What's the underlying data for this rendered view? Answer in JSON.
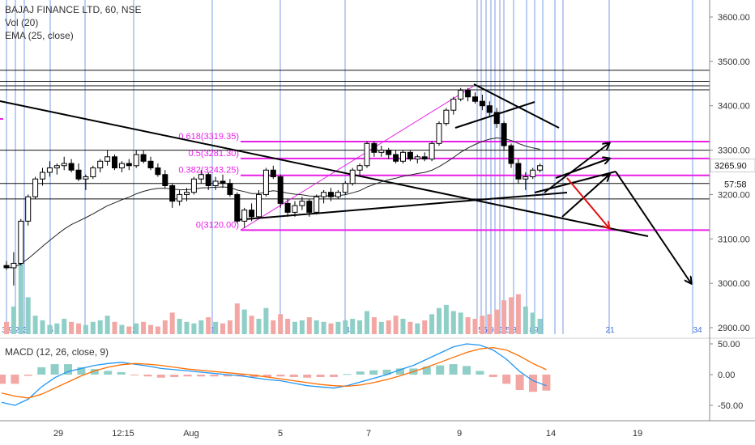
{
  "legend": {
    "title": "BAJAJ FINANCE LTD, 60, NSE",
    "vol": "Vol (20)",
    "ema": "EMA (25, close)",
    "macd": "MACD (12, 26, close, 9)"
  },
  "colors": {
    "up": "#26a69a",
    "down": "#ef5350",
    "volUp": "#8fcfc8",
    "volDown": "#f2a7a5",
    "fib": "#e91ee9",
    "vline": "#3d6fd6",
    "trend": "#000000",
    "ema": "#222222",
    "macdLine": "#2196f3",
    "signalLine": "#ff6d00",
    "arrowRed": "#e01010"
  },
  "price_axis": {
    "ticks": [
      {
        "v": 3600,
        "label": "3600.00"
      },
      {
        "v": 3500,
        "label": "3500.00"
      },
      {
        "v": 3400,
        "label": "3400.00"
      },
      {
        "v": 3300,
        "label": "3300.00"
      },
      {
        "v": 3200,
        "label": "3200.00"
      },
      {
        "v": 3100,
        "label": "3100.00"
      },
      {
        "v": 3000,
        "label": "3000.00"
      },
      {
        "v": 2900,
        "label": "2900.00"
      }
    ],
    "last_price": "3265.90",
    "countdown": "57:58"
  },
  "macd_axis": {
    "ticks": [
      {
        "v": 50,
        "label": "50.00"
      },
      {
        "v": 0,
        "label": "0.00"
      },
      {
        "v": -50,
        "label": "-50.00"
      }
    ]
  },
  "time_axis": [
    "29",
    "12:15",
    "Aug",
    "5",
    "7",
    "9",
    "14",
    "19"
  ],
  "fib_labels": [
    {
      "text": "0.618(3319.35)",
      "price": 3319.35
    },
    {
      "text": "0.5(3281.30)",
      "price": 3281.3
    },
    {
      "text": "0.382(3243.25)",
      "price": 3243.25
    },
    {
      "text": "0(3120.00)",
      "price": 3120.0
    }
  ],
  "cycle_labels": [
    "3",
    "9",
    "2",
    "3",
    "5",
    "8",
    "2",
    "1",
    "3",
    "4",
    "5",
    "5",
    "9",
    "2",
    "3",
    "5",
    "8",
    "89",
    "21",
    "34"
  ],
  "chart_data": {
    "type": "candlestick",
    "symbol": "BAJAJ FINANCE LTD",
    "interval": "60",
    "exchange": "NSE",
    "x_ticks": [
      "29",
      "12:15",
      "Aug",
      "5",
      "7",
      "9",
      "14",
      "19"
    ],
    "y_ticks": [
      3600,
      3500,
      3400,
      3300,
      3200,
      3100,
      3000,
      2900
    ],
    "ylim": [
      2880,
      3640
    ],
    "last_price": 3265.9,
    "fib_levels": [
      3319.35,
      3281.3,
      3243.25,
      3120.0
    ],
    "horizontal_levels": [
      3480,
      3455,
      3445,
      3436,
      3300,
      3225,
      3190
    ],
    "candles": [
      [
        3040,
        3050,
        3030,
        3035
      ],
      [
        3035,
        3070,
        2995,
        3045
      ],
      [
        3045,
        3145,
        3040,
        3140
      ],
      [
        3140,
        3200,
        3130,
        3195
      ],
      [
        3195,
        3240,
        3190,
        3235
      ],
      [
        3235,
        3260,
        3220,
        3250
      ],
      [
        3250,
        3275,
        3240,
        3260
      ],
      [
        3260,
        3270,
        3245,
        3265
      ],
      [
        3265,
        3285,
        3255,
        3270
      ],
      [
        3270,
        3280,
        3250,
        3255
      ],
      [
        3255,
        3270,
        3230,
        3235
      ],
      [
        3235,
        3245,
        3210,
        3240
      ],
      [
        3240,
        3265,
        3235,
        3260
      ],
      [
        3260,
        3280,
        3250,
        3275
      ],
      [
        3275,
        3300,
        3265,
        3285
      ],
      [
        3285,
        3290,
        3255,
        3260
      ],
      [
        3260,
        3275,
        3250,
        3270
      ],
      [
        3270,
        3280,
        3255,
        3265
      ],
      [
        3265,
        3300,
        3260,
        3290
      ],
      [
        3290,
        3300,
        3270,
        3275
      ],
      [
        3275,
        3285,
        3255,
        3260
      ],
      [
        3260,
        3270,
        3240,
        3245
      ],
      [
        3245,
        3255,
        3215,
        3220
      ],
      [
        3220,
        3225,
        3170,
        3185
      ],
      [
        3185,
        3210,
        3175,
        3200
      ],
      [
        3200,
        3215,
        3185,
        3205
      ],
      [
        3205,
        3240,
        3200,
        3235
      ],
      [
        3235,
        3255,
        3225,
        3245
      ],
      [
        3245,
        3250,
        3210,
        3220
      ],
      [
        3220,
        3240,
        3210,
        3230
      ],
      [
        3230,
        3245,
        3215,
        3225
      ],
      [
        3225,
        3235,
        3195,
        3200
      ],
      [
        3200,
        3205,
        3135,
        3140
      ],
      [
        3140,
        3170,
        3125,
        3165
      ],
      [
        3165,
        3180,
        3140,
        3150
      ],
      [
        3150,
        3210,
        3145,
        3200
      ],
      [
        3200,
        3260,
        3195,
        3255
      ],
      [
        3255,
        3265,
        3235,
        3240
      ],
      [
        3240,
        3245,
        3170,
        3180
      ],
      [
        3180,
        3190,
        3150,
        3160
      ],
      [
        3160,
        3185,
        3150,
        3175
      ],
      [
        3175,
        3195,
        3165,
        3185
      ],
      [
        3185,
        3190,
        3150,
        3160
      ],
      [
        3160,
        3200,
        3155,
        3195
      ],
      [
        3195,
        3210,
        3180,
        3205
      ],
      [
        3205,
        3215,
        3185,
        3195
      ],
      [
        3195,
        3210,
        3190,
        3205
      ],
      [
        3205,
        3230,
        3200,
        3225
      ],
      [
        3225,
        3260,
        3220,
        3255
      ],
      [
        3255,
        3270,
        3240,
        3265
      ],
      [
        3265,
        3320,
        3260,
        3315
      ],
      [
        3315,
        3320,
        3285,
        3295
      ],
      [
        3295,
        3310,
        3285,
        3300
      ],
      [
        3300,
        3305,
        3280,
        3290
      ],
      [
        3290,
        3300,
        3270,
        3275
      ],
      [
        3275,
        3300,
        3270,
        3295
      ],
      [
        3295,
        3300,
        3275,
        3280
      ],
      [
        3280,
        3290,
        3270,
        3285
      ],
      [
        3285,
        3295,
        3275,
        3280
      ],
      [
        3280,
        3320,
        3275,
        3315
      ],
      [
        3315,
        3365,
        3310,
        3360
      ],
      [
        3360,
        3395,
        3355,
        3390
      ],
      [
        3390,
        3420,
        3380,
        3415
      ],
      [
        3415,
        3440,
        3410,
        3435
      ],
      [
        3435,
        3440,
        3410,
        3420
      ],
      [
        3420,
        3430,
        3405,
        3410
      ],
      [
        3410,
        3425,
        3390,
        3400
      ],
      [
        3400,
        3410,
        3375,
        3385
      ],
      [
        3385,
        3395,
        3350,
        3360
      ],
      [
        3360,
        3365,
        3300,
        3310
      ],
      [
        3310,
        3315,
        3260,
        3270
      ],
      [
        3270,
        3280,
        3225,
        3235
      ],
      [
        3235,
        3250,
        3210,
        3240
      ],
      [
        3240,
        3260,
        3235,
        3255
      ],
      [
        3255,
        3270,
        3250,
        3265
      ]
    ],
    "volume": [
      8,
      18,
      52,
      24,
      12,
      9,
      6,
      7,
      10,
      8,
      7,
      6,
      8,
      9,
      12,
      8,
      6,
      5,
      7,
      8,
      6,
      5,
      9,
      14,
      10,
      8,
      7,
      9,
      11,
      8,
      7,
      9,
      20,
      16,
      12,
      10,
      17,
      9,
      13,
      10,
      8,
      9,
      11,
      9,
      8,
      7,
      8,
      9,
      10,
      9,
      15,
      11,
      8,
      9,
      12,
      10,
      8,
      7,
      9,
      13,
      17,
      19,
      15,
      14,
      11,
      10,
      12,
      13,
      16,
      22,
      24,
      26,
      18,
      14,
      10
    ],
    "macd": {
      "type": "line",
      "series": [
        {
          "name": "MACD",
          "values": [
            -45,
            -50,
            -40,
            -20,
            -5,
            5,
            10,
            15,
            18,
            20,
            17,
            14,
            10,
            8,
            6,
            4,
            2,
            0,
            -2,
            -5,
            -8,
            -10,
            -14,
            -18,
            -20,
            -22,
            -18,
            -12,
            -6,
            0,
            8,
            15,
            25,
            35,
            45,
            50,
            48,
            40,
            25,
            5,
            -10,
            -18
          ]
        },
        {
          "name": "Signal",
          "values": [
            -30,
            -35,
            -38,
            -32,
            -22,
            -12,
            -2,
            6,
            12,
            16,
            18,
            17,
            15,
            12,
            9,
            7,
            5,
            3,
            1,
            -1,
            -4,
            -7,
            -10,
            -13,
            -16,
            -18,
            -19,
            -17,
            -13,
            -8,
            -2,
            5,
            12,
            20,
            28,
            36,
            42,
            44,
            40,
            30,
            18,
            8
          ]
        }
      ]
    }
  }
}
